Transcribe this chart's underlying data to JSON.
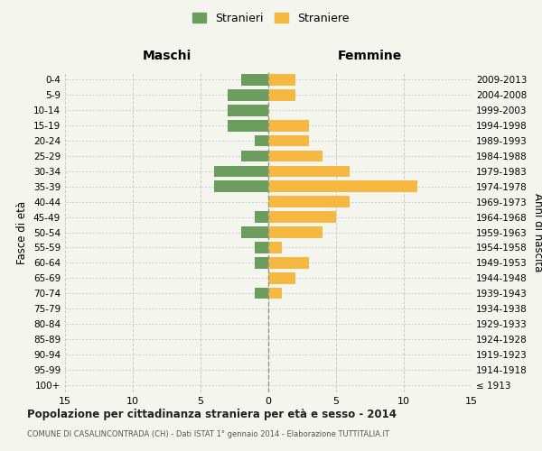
{
  "age_groups": [
    "0-4",
    "5-9",
    "10-14",
    "15-19",
    "20-24",
    "25-29",
    "30-34",
    "35-39",
    "40-44",
    "45-49",
    "50-54",
    "55-59",
    "60-64",
    "65-69",
    "70-74",
    "75-79",
    "80-84",
    "85-89",
    "90-94",
    "95-99",
    "100+"
  ],
  "birth_years": [
    "2009-2013",
    "2004-2008",
    "1999-2003",
    "1994-1998",
    "1989-1993",
    "1984-1988",
    "1979-1983",
    "1974-1978",
    "1969-1973",
    "1964-1968",
    "1959-1963",
    "1954-1958",
    "1949-1953",
    "1944-1948",
    "1939-1943",
    "1934-1938",
    "1929-1933",
    "1924-1928",
    "1919-1923",
    "1914-1918",
    "≤ 1913"
  ],
  "males": [
    2,
    3,
    3,
    3,
    1,
    2,
    4,
    4,
    0,
    1,
    2,
    1,
    1,
    0,
    1,
    0,
    0,
    0,
    0,
    0,
    0
  ],
  "females": [
    2,
    2,
    0,
    3,
    3,
    4,
    6,
    11,
    6,
    5,
    4,
    1,
    3,
    2,
    1,
    0,
    0,
    0,
    0,
    0,
    0
  ],
  "color_male": "#6b9e5e",
  "color_female": "#f5b942",
  "title": "Popolazione per cittadinanza straniera per età e sesso - 2014",
  "subtitle": "COMUNE DI CASALINCONTRADA (CH) - Dati ISTAT 1° gennaio 2014 - Elaborazione TUTTITALIA.IT",
  "label_male": "Stranieri",
  "label_female": "Straniere",
  "xlabel_left": "Maschi",
  "xlabel_right": "Femmine",
  "ylabel_left": "Fasce di età",
  "ylabel_right": "Anni di nascita",
  "xlim": 15,
  "bg_color": "#f5f5f0",
  "grid_color": "#cccccc"
}
